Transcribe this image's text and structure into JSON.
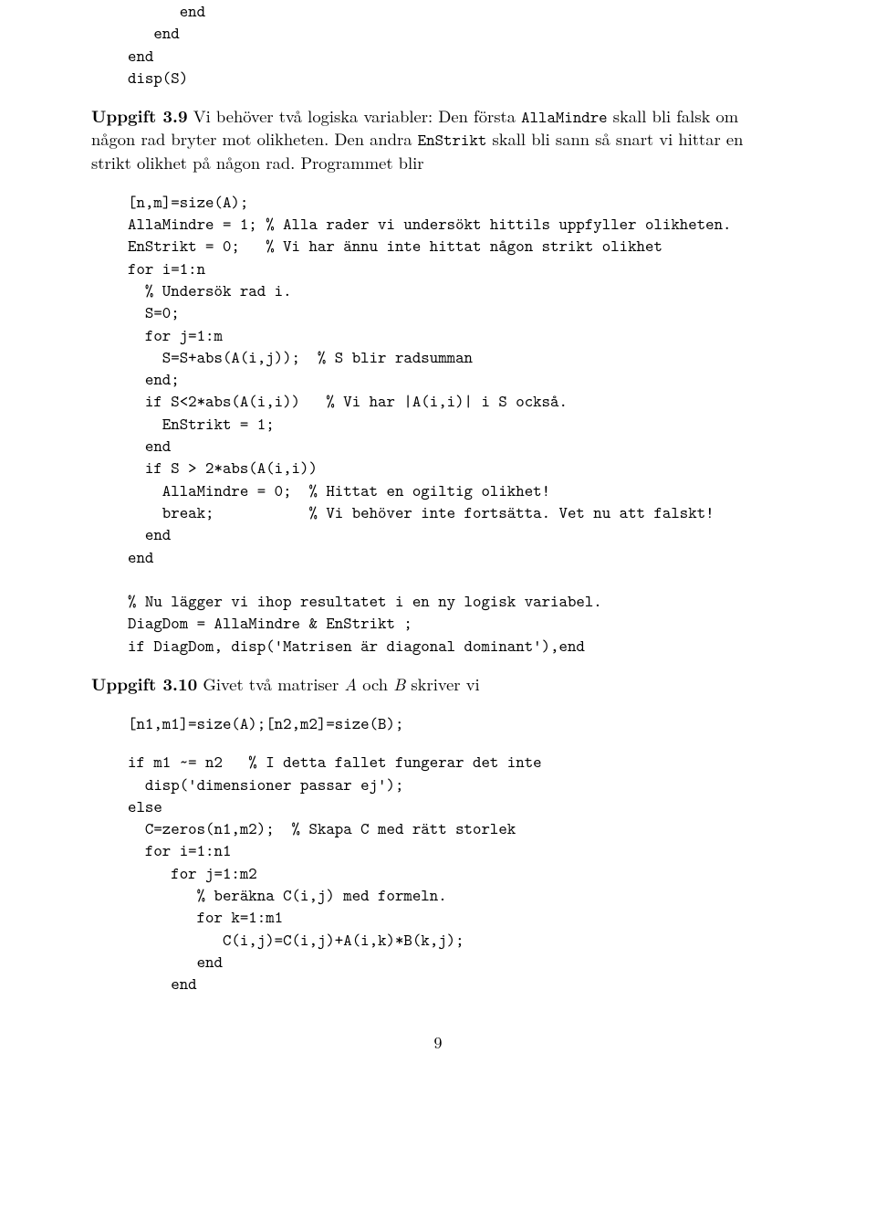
{
  "colors": {
    "text": "#000000",
    "background": "#ffffff"
  },
  "typography": {
    "body_family": "CMU Serif / Computer Modern",
    "body_size_pt": 11,
    "code_family": "CMU Typewriter Text",
    "code_size_pt": 11,
    "line_height": 1.35
  },
  "code_top": "      end\n   end\nend\ndisp(S)",
  "uppgift39": {
    "label": "Uppgift 3.9",
    "text_before": " Vi behöver två logiska variabler: Den första ",
    "tt1": "AllaMindre",
    "text_mid1": " skall bli falsk om någon rad bryter mot olikheten. Den andra ",
    "tt2": "EnStrikt",
    "text_after": " skall bli sann så snart vi hittar en strikt olikhet på någon rad. Programmet blir"
  },
  "code39": "[n,m]=size(A);\nAllaMindre = 1; % Alla rader vi undersökt hittils uppfyller olikheten.\nEnStrikt = 0;   % Vi har ännu inte hittat någon strikt olikhet\nfor i=1:n\n  % Undersök rad i.\n  S=0;\n  for j=1:m\n    S=S+abs(A(i,j));  % S blir radsumman\n  end;\n  if S<2*abs(A(i,i))   % Vi har |A(i,i)| i S också.\n    EnStrikt = 1;\n  end\n  if S > 2*abs(A(i,i))\n    AllaMindre = 0;  % Hittat en ogiltig olikhet!\n    break;           % Vi behöver inte fortsätta. Vet nu att falskt!\n  end\nend\n\n% Nu lägger vi ihop resultatet i en ny logisk variabel.\nDiagDom = AllaMindre & EnStrikt ;\nif DiagDom, disp('Matrisen är diagonal dominant'),end",
  "uppgift310": {
    "label": "Uppgift 3.10",
    "text_before": " Givet två matriser ",
    "mathA": "A",
    "text_mid": " och ",
    "mathB": "B",
    "text_after": " skriver vi"
  },
  "code310a": "[n1,m1]=size(A);[n2,m2]=size(B);",
  "code310b": "if m1 ~= n2   % I detta fallet fungerar det inte\n  disp('dimensioner passar ej');\nelse\n  C=zeros(n1,m2);  % Skapa C med rätt storlek\n  for i=1:n1\n     for j=1:m2\n        % beräkna C(i,j) med formeln.\n        for k=1:m1\n           C(i,j)=C(i,j)+A(i,k)*B(k,j);\n        end\n     end",
  "page_number": "9"
}
